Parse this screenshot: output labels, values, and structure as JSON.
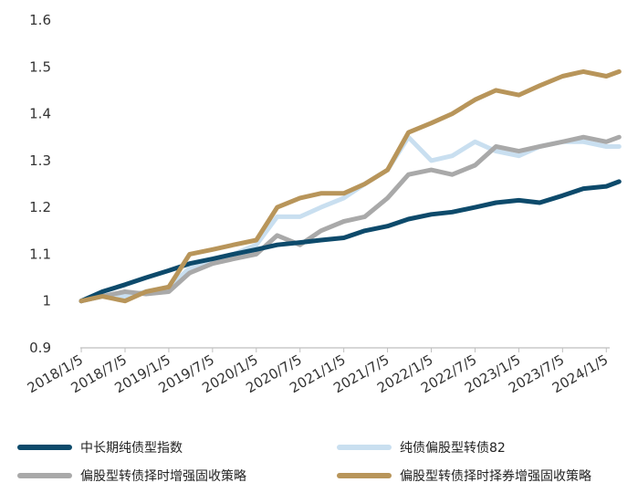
{
  "chart_data": {
    "type": "line",
    "title": "",
    "xlabel": "",
    "ylabel": "",
    "ylim": [
      0.9,
      1.6
    ],
    "yticks": [
      0.9,
      1,
      1.1,
      1.2,
      1.3,
      1.4,
      1.5,
      1.6
    ],
    "ytick_labels": [
      "0.9",
      "1",
      "1.1",
      "1.2",
      "1.3",
      "1.4",
      "1.5",
      "1.6"
    ],
    "xlim": [
      2018.0,
      2024.05
    ],
    "xtick_labels": [
      "2018/1/5",
      "2018/7/5",
      "2019/1/5",
      "2019/7/5",
      "2020/1/5",
      "2020/7/5",
      "2021/1/5",
      "2021/7/5",
      "2022/1/5",
      "2022/7/5",
      "2023/1/5",
      "2023/7/5",
      "2024/1/5"
    ],
    "grid": false,
    "legend_position": "bottom",
    "series": [
      {
        "name": "中长期纯债型指数",
        "color": "#0d4a6b",
        "x": [
          "2018/1/5",
          "2018/4/1",
          "2018/7/5",
          "2018/10/1",
          "2019/1/5",
          "2019/4/1",
          "2019/7/5",
          "2019/10/1",
          "2020/1/5",
          "2020/4/1",
          "2020/7/5",
          "2020/10/1",
          "2021/1/5",
          "2021/4/1",
          "2021/7/5",
          "2021/10/1",
          "2022/1/5",
          "2022/4/1",
          "2022/7/5",
          "2022/10/1",
          "2023/1/5",
          "2023/4/1",
          "2023/7/5",
          "2023/10/1",
          "2024/1/5",
          "2024/2/28"
        ],
        "values": [
          1.0,
          1.02,
          1.035,
          1.05,
          1.065,
          1.08,
          1.09,
          1.1,
          1.11,
          1.12,
          1.125,
          1.13,
          1.135,
          1.15,
          1.16,
          1.175,
          1.185,
          1.19,
          1.2,
          1.21,
          1.215,
          1.21,
          1.225,
          1.24,
          1.245,
          1.255
        ]
      },
      {
        "name": "纯债偏股型转债82",
        "color": "#c9dff0",
        "x": [
          "2018/1/5",
          "2018/4/1",
          "2018/7/5",
          "2018/10/1",
          "2019/1/5",
          "2019/4/1",
          "2019/7/5",
          "2019/10/1",
          "2020/1/5",
          "2020/4/1",
          "2020/7/5",
          "2020/10/1",
          "2021/1/5",
          "2021/4/1",
          "2021/7/5",
          "2021/10/1",
          "2022/1/5",
          "2022/4/1",
          "2022/7/5",
          "2022/10/1",
          "2023/1/5",
          "2023/4/1",
          "2023/7/5",
          "2023/10/1",
          "2024/1/5",
          "2024/2/28"
        ],
        "values": [
          1.0,
          1.01,
          1.01,
          1.02,
          1.03,
          1.07,
          1.08,
          1.1,
          1.12,
          1.18,
          1.18,
          1.2,
          1.22,
          1.25,
          1.28,
          1.35,
          1.3,
          1.31,
          1.34,
          1.32,
          1.31,
          1.33,
          1.34,
          1.34,
          1.33,
          1.33
        ]
      },
      {
        "name": "偏股型转债择时增强固收策略",
        "color": "#a9a9a9",
        "x": [
          "2018/1/5",
          "2018/4/1",
          "2018/7/5",
          "2018/10/1",
          "2019/1/5",
          "2019/4/1",
          "2019/7/5",
          "2019/10/1",
          "2020/1/5",
          "2020/4/1",
          "2020/7/5",
          "2020/10/1",
          "2021/1/5",
          "2021/4/1",
          "2021/7/5",
          "2021/10/1",
          "2022/1/5",
          "2022/4/1",
          "2022/7/5",
          "2022/10/1",
          "2023/1/5",
          "2023/4/1",
          "2023/7/5",
          "2023/10/1",
          "2024/1/5",
          "2024/2/28"
        ],
        "values": [
          1.0,
          1.01,
          1.02,
          1.015,
          1.02,
          1.06,
          1.08,
          1.09,
          1.1,
          1.14,
          1.12,
          1.15,
          1.17,
          1.18,
          1.22,
          1.27,
          1.28,
          1.27,
          1.29,
          1.33,
          1.32,
          1.33,
          1.34,
          1.35,
          1.34,
          1.35
        ]
      },
      {
        "name": "偏股型转债择时择券增强固收策略",
        "color": "#b8955a",
        "x": [
          "2018/1/5",
          "2018/4/1",
          "2018/7/5",
          "2018/10/1",
          "2019/1/5",
          "2019/4/1",
          "2019/7/5",
          "2019/10/1",
          "2020/1/5",
          "2020/4/1",
          "2020/7/5",
          "2020/10/1",
          "2021/1/5",
          "2021/4/1",
          "2021/7/5",
          "2021/10/1",
          "2022/1/5",
          "2022/4/1",
          "2022/7/5",
          "2022/10/1",
          "2023/1/5",
          "2023/4/1",
          "2023/7/5",
          "2023/10/1",
          "2024/1/5",
          "2024/2/28"
        ],
        "values": [
          1.0,
          1.01,
          1.0,
          1.02,
          1.03,
          1.1,
          1.11,
          1.12,
          1.13,
          1.2,
          1.22,
          1.23,
          1.23,
          1.25,
          1.28,
          1.36,
          1.38,
          1.4,
          1.43,
          1.45,
          1.44,
          1.46,
          1.48,
          1.49,
          1.48,
          1.49
        ]
      }
    ]
  }
}
